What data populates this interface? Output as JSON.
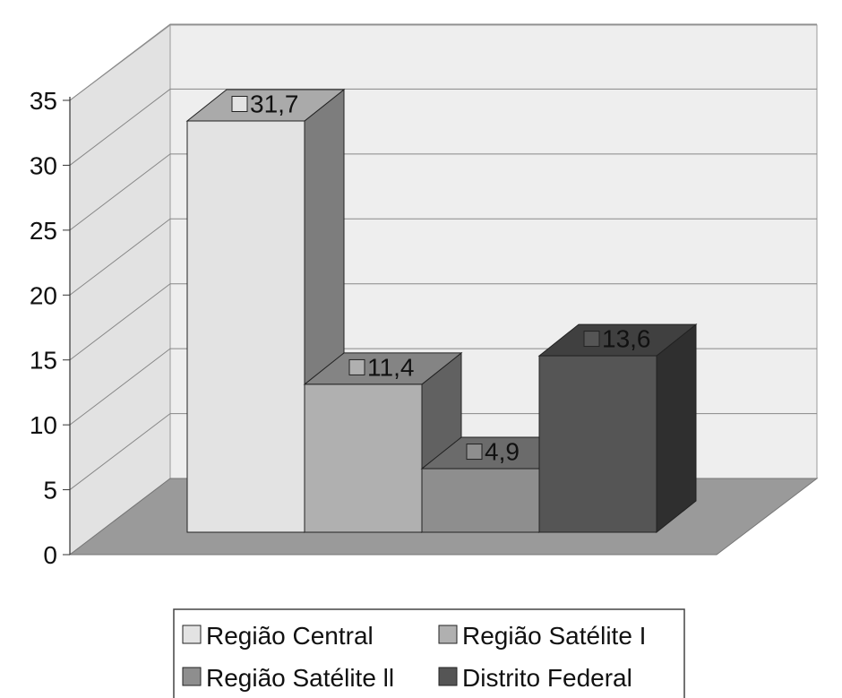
{
  "chart_data": {
    "type": "bar",
    "three_d": true,
    "categories": [
      "Região Central",
      "Região Satélite I",
      "Região Satélite II",
      "Distrito Federal"
    ],
    "values": [
      31.7,
      11.4,
      4.9,
      13.6
    ],
    "value_labels": [
      "31,7",
      "11,4",
      "4,9",
      "13,6"
    ],
    "colors": [
      "#e3e3e3",
      "#b0b0b0",
      "#8e8e8e",
      "#555555"
    ],
    "ylim": [
      0,
      35
    ],
    "yticks": [
      0,
      5,
      10,
      15,
      20,
      25,
      30,
      35
    ],
    "ytick_labels": [
      "0",
      "5",
      "10",
      "15",
      "20",
      "25",
      "30",
      "35"
    ],
    "grid": true,
    "legend": {
      "placement": "bottom",
      "entries": [
        "Região Central",
        "Região Satélite I",
        "Região Satélite ll",
        "Distrito Federal"
      ]
    },
    "title": "",
    "xlabel": "",
    "ylabel": ""
  }
}
